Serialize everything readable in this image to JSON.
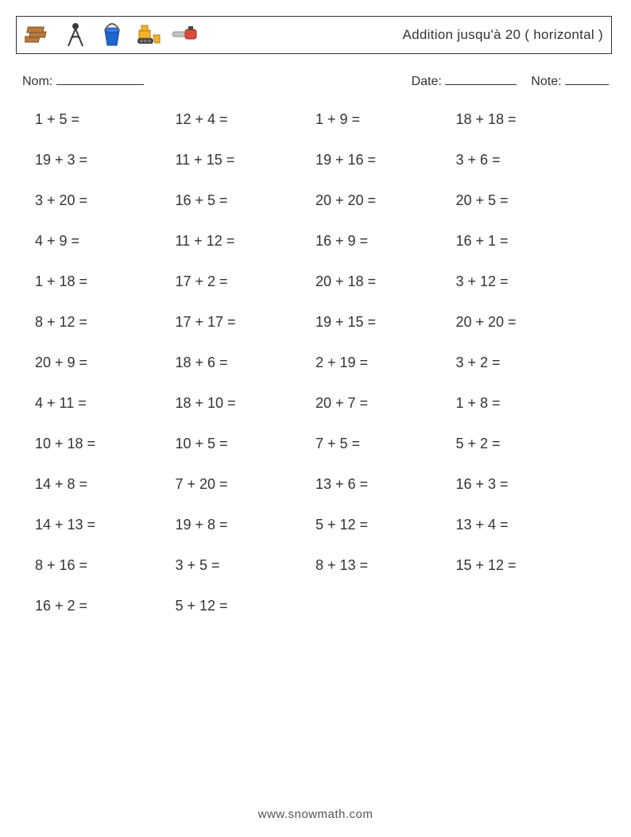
{
  "header": {
    "title": "Addition jusqu'à 20 ( horizontal )",
    "icons": [
      "planks-icon",
      "compass-icon",
      "bucket-icon",
      "bulldozer-icon",
      "chainsaw-icon"
    ]
  },
  "meta": {
    "name_label": "Nom:",
    "date_label": "Date:",
    "note_label": "Note:"
  },
  "style": {
    "text_color": "#333333",
    "border_color": "#333333",
    "page_bg": "#ffffff",
    "title_fontsize": 17,
    "problem_fontsize": 18,
    "meta_fontsize": 16,
    "columns": 4,
    "row_gap": 30,
    "icon_colors": {
      "planks": "#b97a3c",
      "compass": "#3b3b3b",
      "bucket": "#1e66d0",
      "bucket_handle": "#606060",
      "bulldozer": "#f5b32a",
      "bulldozer_track": "#444444",
      "chainsaw_blade": "#bfc4c9",
      "chainsaw_body": "#d94b3a"
    }
  },
  "problems": [
    "1 + 5 =",
    "12 + 4 =",
    "1 + 9 =",
    "18 + 18 =",
    "19 + 3 =",
    "11 + 15 =",
    "19 + 16 =",
    "3 + 6 =",
    "3 + 20 =",
    "16 + 5 =",
    "20 + 20 =",
    "20 + 5 =",
    "4 + 9 =",
    "11 + 12 =",
    "16 + 9 =",
    "16 + 1 =",
    "1 + 18 =",
    "17 + 2 =",
    "20 + 18 =",
    "3 + 12 =",
    "8 + 12 =",
    "17 + 17 =",
    "19 + 15 =",
    "20 + 20 =",
    "20 + 9 =",
    "18 + 6 =",
    "2 + 19 =",
    "3 + 2 =",
    "4 + 11 =",
    "18 + 10 =",
    "20 + 7 =",
    "1 + 8 =",
    "10 + 18 =",
    "10 + 5 =",
    "7 + 5 =",
    "5 + 2 =",
    "14 + 8 =",
    "7 + 20 =",
    "13 + 6 =",
    "16 + 3 =",
    "14 + 13 =",
    "19 + 8 =",
    "5 + 12 =",
    "13 + 4 =",
    "8 + 16 =",
    "3 + 5 =",
    "8 + 13 =",
    "15 + 12 =",
    "16 + 2 =",
    "5 + 12 ="
  ],
  "footer": {
    "text": "www.snowmath.com"
  }
}
